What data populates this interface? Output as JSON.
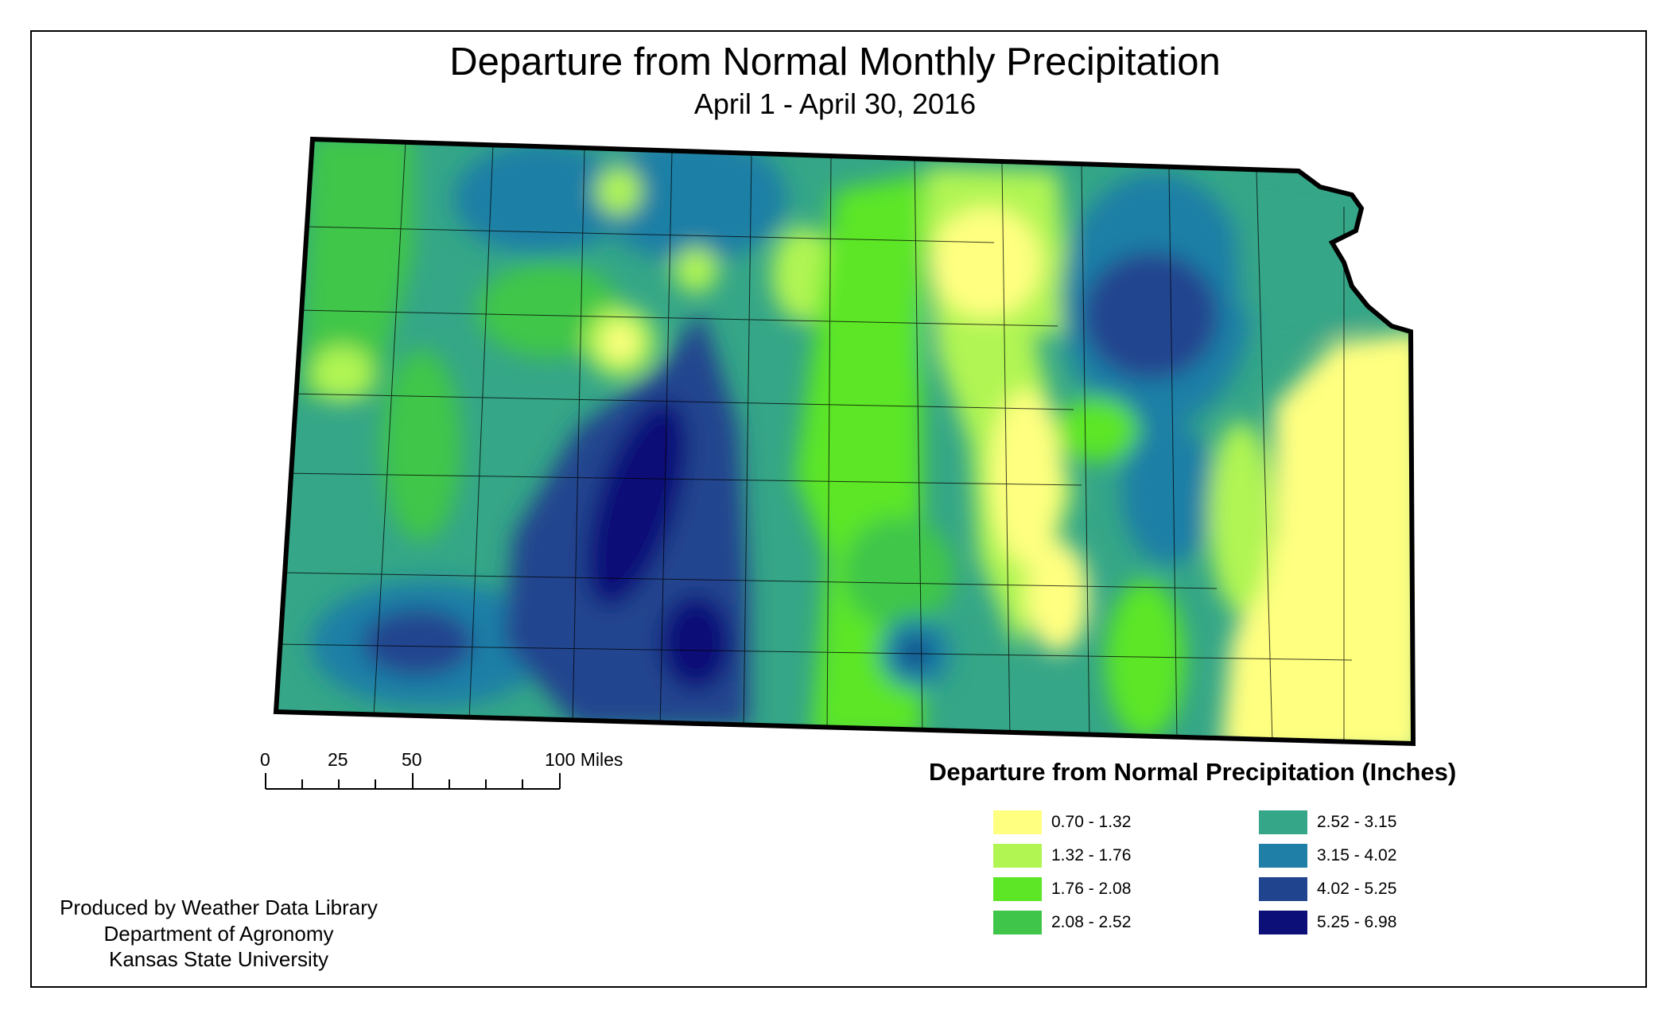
{
  "title": "Departure from Normal Monthly Precipitation",
  "subtitle": "April 1 - April 30, 2016",
  "scale_bar": {
    "labels": [
      "0",
      "25",
      "50",
      "100 Miles"
    ]
  },
  "legend": {
    "title": "Departure from Normal Precipitation (Inches)",
    "items": [
      {
        "label": "0.70 - 1.32",
        "color": "#ffff80"
      },
      {
        "label": "1.32 - 1.76",
        "color": "#b0f552"
      },
      {
        "label": "1.76 - 2.08",
        "color": "#5ce625"
      },
      {
        "label": "2.08 - 2.52",
        "color": "#3fc64a"
      },
      {
        "label": "2.52 - 3.15",
        "color": "#35a687"
      },
      {
        "label": "3.15 - 4.02",
        "color": "#1f7fa6"
      },
      {
        "label": "4.02 - 5.25",
        "color": "#21448f"
      },
      {
        "label": "5.25 - 6.98",
        "color": "#0c0f78"
      }
    ]
  },
  "credits": [
    "Produced by Weather Data Library",
    "Department of Agronomy",
    "Kansas State University"
  ]
}
